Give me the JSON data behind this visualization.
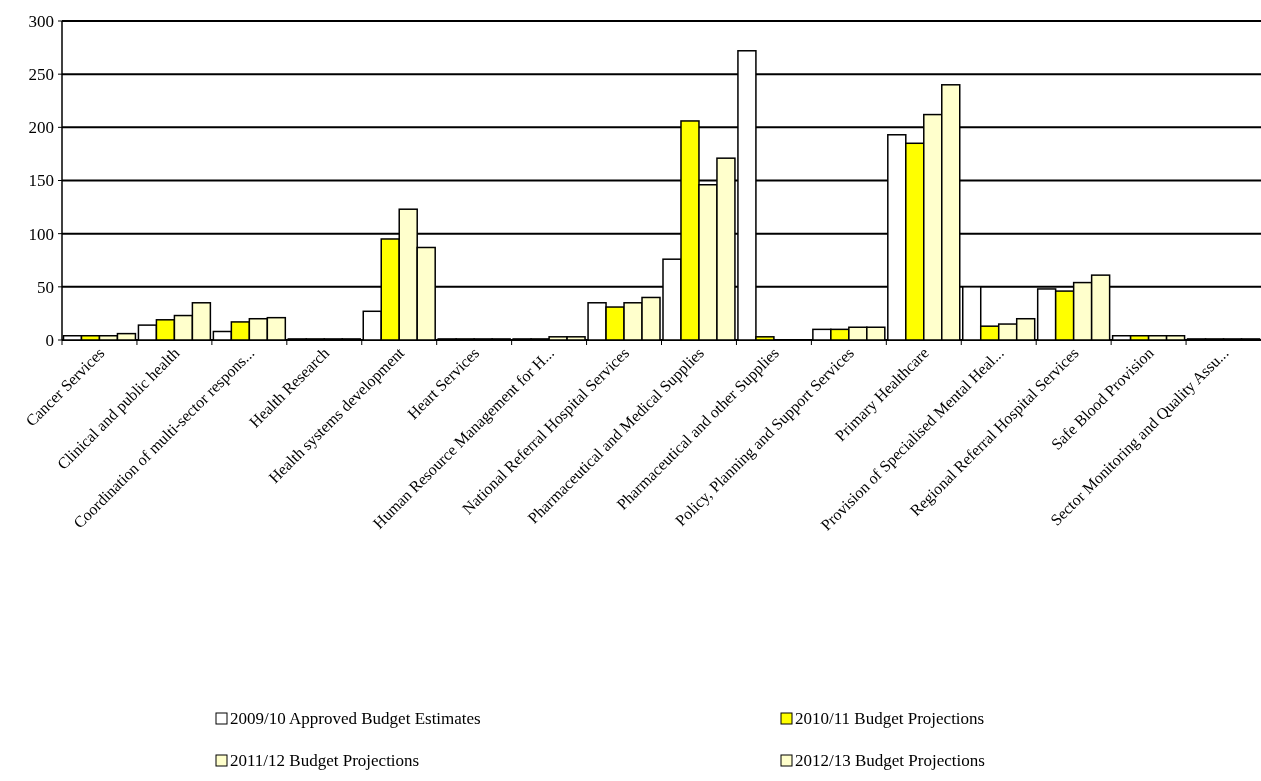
{
  "chart_data": {
    "type": "bar",
    "categories": [
      "Cancer Services",
      "Clinical and public health",
      "Coordination of multi-sector respons...",
      "Health Research",
      "Health systems development",
      "Heart Services",
      "Human Resource Management for H...",
      "National Referral Hospital Services",
      "Pharmaceutical and Medical Supplies",
      "Pharmaceutical and other Supplies",
      "Policy, Planning and Support Services",
      "Primary Healthcare",
      "Provision of Specialised Mental Heal...",
      "Regional Referral Hospital Services",
      "Safe Blood Provision",
      "Sector Monitoring and Quality Assu..."
    ],
    "series": [
      {
        "name": "2009/10 Approved Budget Estimates",
        "color": "#ffffff",
        "values": [
          4,
          14,
          8,
          1,
          27,
          1,
          1,
          35,
          76,
          272,
          10,
          193,
          50,
          48,
          4,
          1
        ]
      },
      {
        "name": "2010/11 Budget Projections",
        "color": "#ffff00",
        "values": [
          4,
          19,
          17,
          1,
          95,
          1,
          1,
          31,
          206,
          3,
          10,
          185,
          13,
          46,
          4,
          1
        ]
      },
      {
        "name": "2011/12 Budget Projections",
        "color": "#ffffcc",
        "values": [
          4,
          23,
          20,
          1,
          123,
          1,
          3,
          35,
          146,
          0,
          12,
          212,
          15,
          54,
          4,
          1
        ]
      },
      {
        "name": "2012/13 Budget Projections",
        "color": "#ffffcc",
        "values": [
          6,
          35,
          21,
          1,
          87,
          1,
          3,
          40,
          171,
          0,
          12,
          240,
          20,
          61,
          4,
          1
        ]
      }
    ],
    "ylim": [
      0,
      300
    ],
    "yticks": [
      0,
      50,
      100,
      150,
      200,
      250,
      300
    ],
    "grid": "y",
    "legend": "bottom"
  }
}
